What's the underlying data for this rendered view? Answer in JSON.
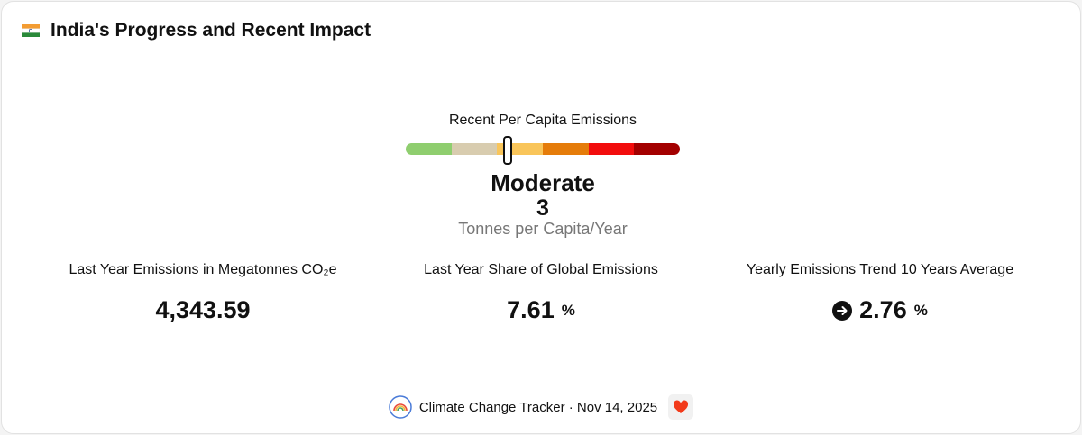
{
  "header": {
    "title": "India's Progress and Recent Impact"
  },
  "gauge": {
    "label": "Recent Per Capita Emissions",
    "level": "Moderate",
    "value": "3",
    "unit": "Tonnes per Capita/Year"
  },
  "stats": [
    {
      "label": "Last Year Emissions in Megatonnes CO₂e",
      "value": "4,343.59"
    },
    {
      "label": "Last Year Share of Global Emissions",
      "value": "7.61",
      "unit": "%"
    },
    {
      "label": "Yearly Emissions Trend 10 Years Average",
      "value": "2.76",
      "unit": "%"
    }
  ],
  "footer": {
    "text": "Climate Change Tracker · Nov 14, 2025"
  }
}
